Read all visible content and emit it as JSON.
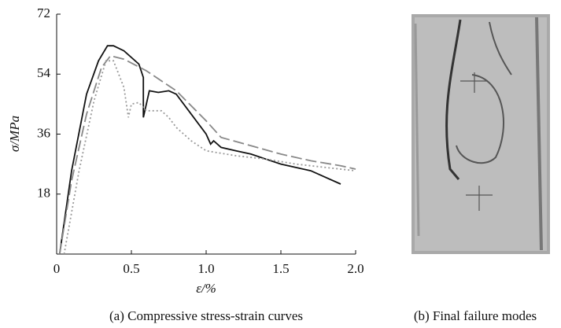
{
  "chart_data": {
    "type": "line",
    "ylabel": "σ/MPa",
    "xlabel": "ε/%",
    "xlim": [
      0,
      2
    ],
    "ylim": [
      0,
      72
    ],
    "xticks": [
      0,
      0.5,
      {
        "value": 1,
        "label": "1.0"
      },
      1.5,
      {
        "value": 2,
        "label": "2.0"
      }
    ],
    "yticks": [
      18,
      36,
      54,
      72
    ],
    "grid": false,
    "series": [
      {
        "color": "#111111",
        "dash": "solid",
        "x": [
          0.02,
          0.1,
          0.2,
          0.28,
          0.34,
          0.38,
          0.45,
          0.55,
          0.58,
          0.58,
          0.62,
          0.68,
          0.75,
          0.8,
          0.9,
          1.0,
          1.03,
          1.05,
          1.1,
          1.2,
          1.3,
          1.4,
          1.5,
          1.6,
          1.7,
          1.8,
          1.9
        ],
        "values": [
          0,
          25,
          48,
          58,
          62.5,
          62.5,
          61,
          57,
          53,
          41,
          49,
          48.5,
          49,
          48,
          42,
          36,
          33,
          34,
          32,
          31,
          30,
          28.5,
          27,
          26,
          25,
          23,
          21
        ]
      },
      {
        "color": "#888888",
        "dash": "dashed",
        "x": [
          0.02,
          0.1,
          0.2,
          0.3,
          0.36,
          0.45,
          0.6,
          0.8,
          1.0,
          1.1,
          1.3,
          1.5,
          1.7,
          1.9,
          2.0
        ],
        "values": [
          0,
          22,
          42,
          56,
          59.5,
          58.5,
          55,
          49,
          40,
          35,
          32.5,
          30,
          28,
          26.5,
          25.5
        ]
      },
      {
        "color": "#999999",
        "dash": "dotted",
        "x": [
          0.05,
          0.15,
          0.25,
          0.33,
          0.38,
          0.45,
          0.48,
          0.5,
          0.55,
          0.6,
          0.7,
          0.75,
          0.8,
          0.9,
          1.0,
          1.2,
          1.4,
          1.6,
          1.8,
          2.0
        ],
        "values": [
          0,
          25,
          46,
          58,
          58,
          50,
          41,
          45,
          45.5,
          43,
          43,
          41,
          38,
          34,
          31,
          29.5,
          28.5,
          27,
          26,
          25
        ]
      }
    ]
  },
  "captions": [
    "(a) Compressive stress-strain curves",
    "(b) Final failure modes"
  ]
}
